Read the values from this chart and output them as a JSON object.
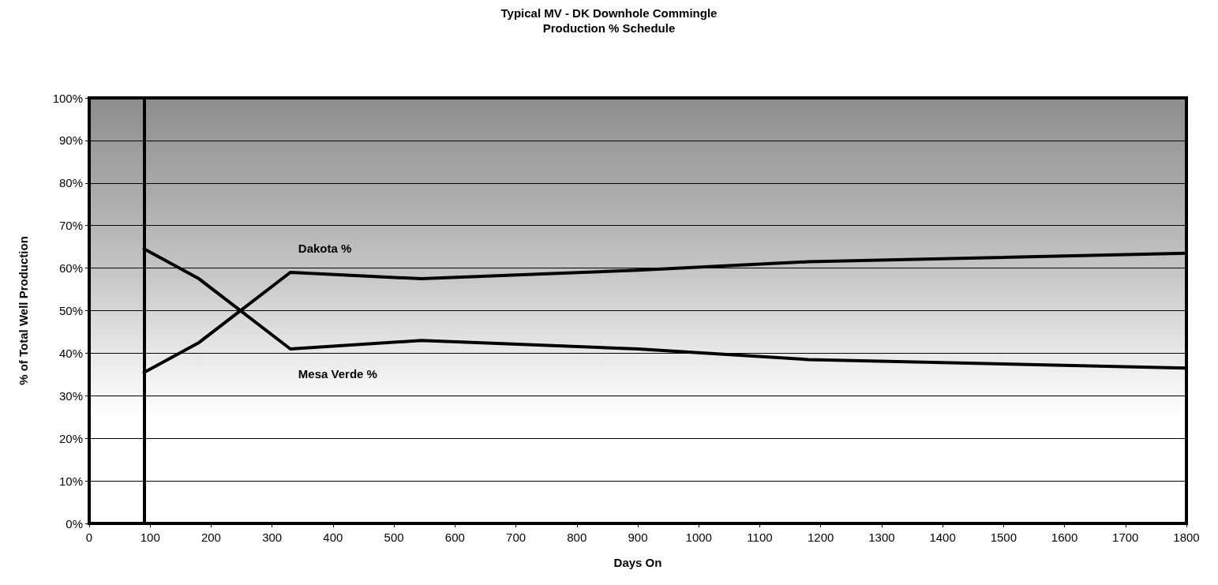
{
  "chart_data": {
    "type": "line",
    "title": "Typical MV - DK Downhole Commingle",
    "subtitle": "Production % Schedule",
    "xlabel": "Days On",
    "ylabel": "% of Total Well Production",
    "series": [
      {
        "name": "Dakota %",
        "color": "#000000",
        "x": [
          90,
          180,
          330,
          545,
          900,
          1180,
          1800
        ],
        "values": [
          35.5,
          42.5,
          59,
          57.5,
          59.5,
          61.5,
          63.5
        ]
      },
      {
        "name": "Mesa Verde %",
        "color": "#000000",
        "x": [
          90,
          180,
          330,
          545,
          900,
          1180,
          1800
        ],
        "values": [
          64.5,
          57.5,
          41,
          43,
          41,
          38.5,
          36.5
        ]
      }
    ],
    "ref_lines": [
      {
        "axis": "x",
        "value": 90,
        "label": null,
        "color": "#000000"
      }
    ],
    "xlim": [
      0,
      1800
    ],
    "xticks": [
      0,
      100,
      200,
      300,
      400,
      500,
      600,
      700,
      800,
      900,
      1000,
      1100,
      1200,
      1300,
      1400,
      1500,
      1600,
      1700,
      1800
    ],
    "ylim": [
      0,
      100
    ],
    "yticks": [
      {
        "value": 0,
        "label": "0%"
      },
      {
        "value": 10,
        "label": "10%"
      },
      {
        "value": 20,
        "label": "20%"
      },
      {
        "value": 30,
        "label": "30%"
      },
      {
        "value": 40,
        "label": "40%"
      },
      {
        "value": 50,
        "label": "50%"
      },
      {
        "value": 60,
        "label": "60%"
      },
      {
        "value": 70,
        "label": "70%"
      },
      {
        "value": 80,
        "label": "80%"
      },
      {
        "value": 90,
        "label": "90%"
      },
      {
        "value": 100,
        "label": "100%"
      }
    ],
    "grid": "y",
    "legend": false,
    "marker": "none",
    "line_style": "solid"
  }
}
